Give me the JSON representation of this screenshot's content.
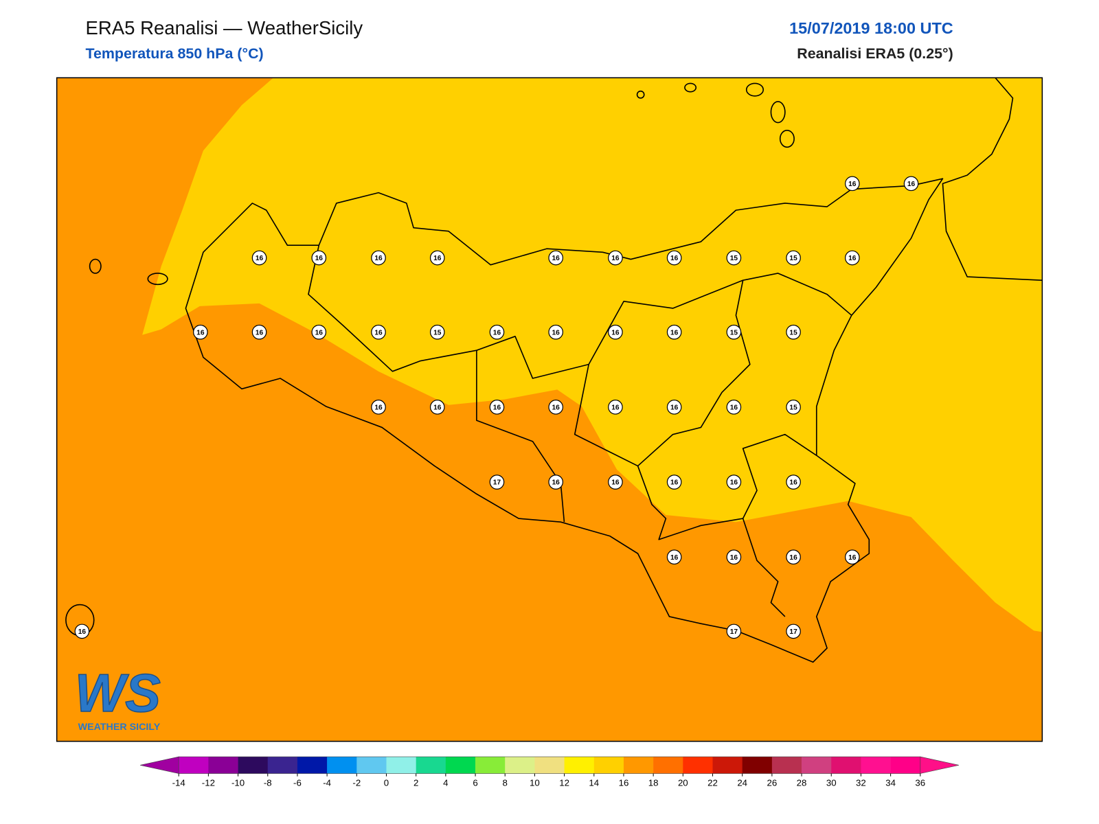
{
  "header": {
    "title": "ERA5 Reanalisi — WeatherSicily",
    "subtitle": "Temperatura 850 hPa (°C)",
    "datetime": "15/07/2019 18:00 UTC",
    "source": "Reanalisi ERA5 (0.25°)"
  },
  "stations": [
    16,
    16,
    16,
    16,
    16,
    16,
    16,
    16,
    16,
    15,
    15,
    16,
    16,
    16,
    16,
    16,
    15,
    16,
    16,
    16,
    16,
    15,
    15,
    16,
    16,
    16,
    16,
    16,
    16,
    16,
    15,
    17,
    16,
    16,
    16,
    16,
    16,
    16,
    16,
    16,
    16,
    16,
    17,
    17
  ],
  "colorbar": {
    "levels": [
      -14,
      -12,
      -10,
      -8,
      -6,
      -4,
      -2,
      0,
      2,
      4,
      6,
      8,
      10,
      12,
      14,
      16,
      18,
      20,
      22,
      24,
      26,
      28,
      30,
      32,
      34,
      36
    ],
    "colors": [
      "#c000c0",
      "#8a0096",
      "#2d0a5e",
      "#3a2490",
      "#0018a8",
      "#0090f0",
      "#60c8f0",
      "#90f0e8",
      "#18d890",
      "#00d850",
      "#88ec38",
      "#dcf088",
      "#f0e080",
      "#fff000",
      "#ffd000",
      "#ff9800",
      "#ff7000",
      "#ff3000",
      "#cc1808",
      "#800000",
      "#b83050",
      "#d04080",
      "#e01070",
      "#ff1090",
      "#ff0088"
    ],
    "under_color": "#a000a0",
    "over_color": "#ff1088"
  },
  "logo": {
    "mark": "WS",
    "text": "WEATHER SICILY"
  }
}
